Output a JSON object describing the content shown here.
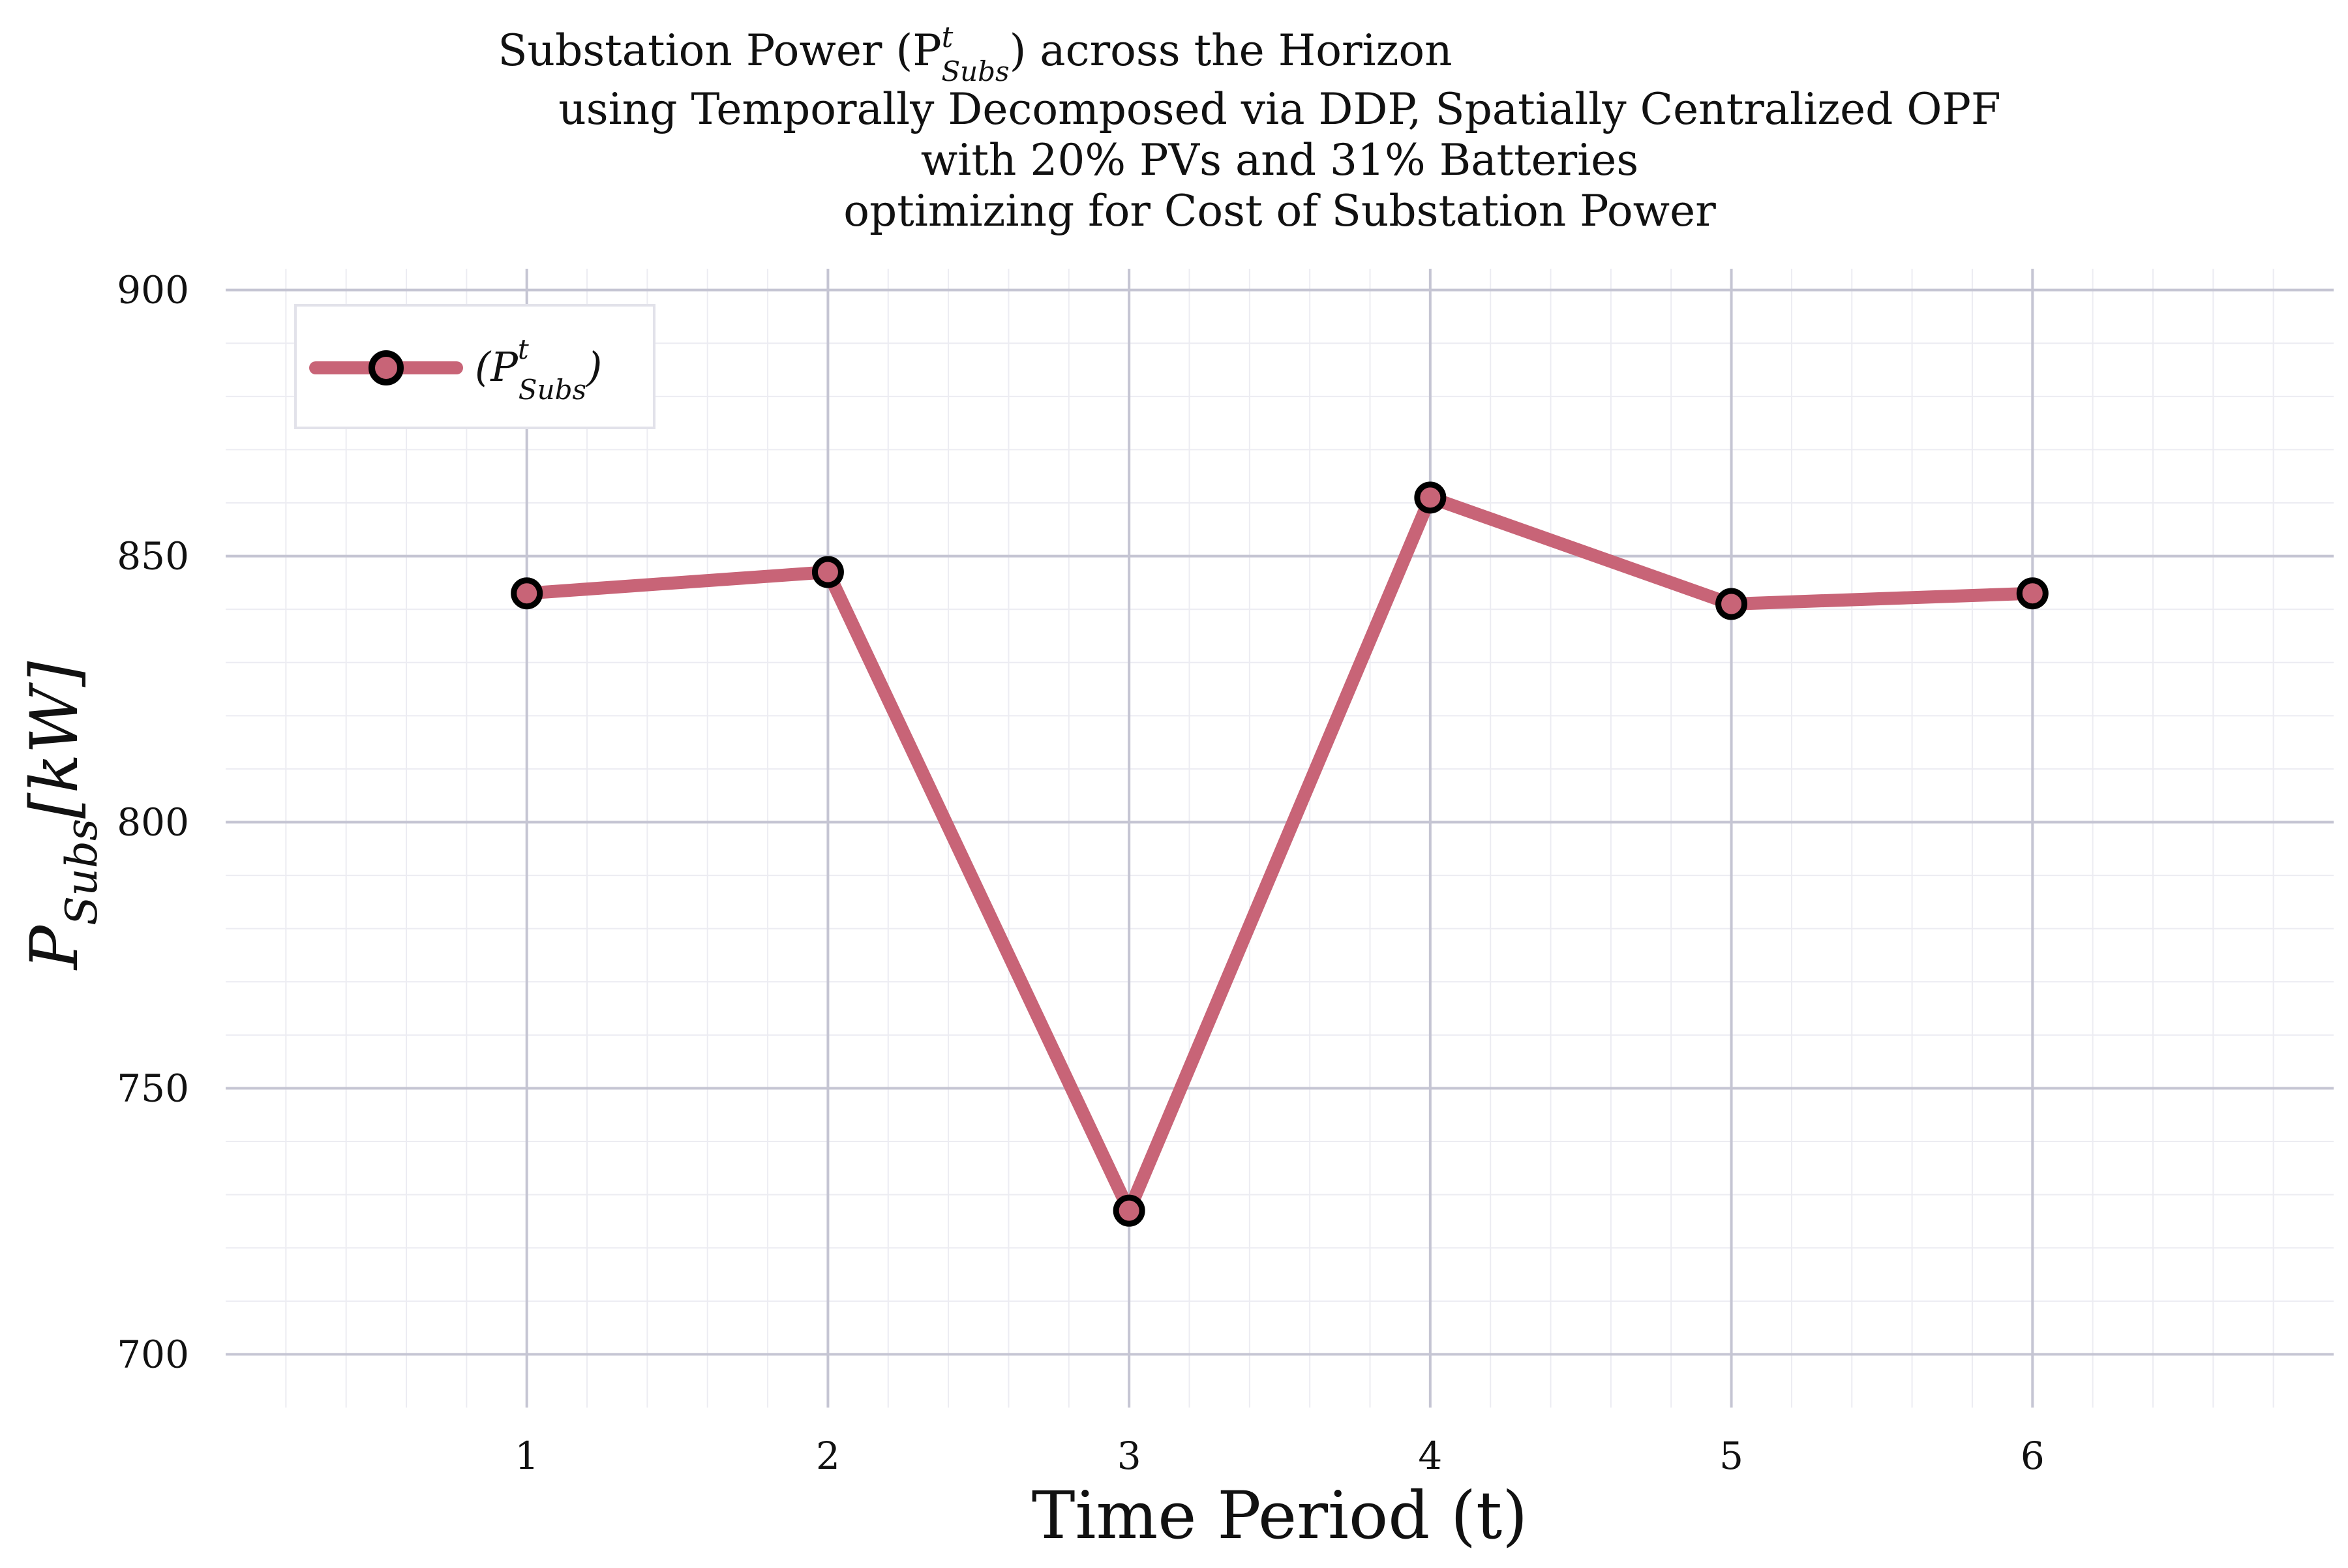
{
  "chart_data": {
    "type": "line",
    "title_lines": [
      "Substation Power (P",
      "using Temporally Decomposed via DDP, Spatially Centralized OPF",
      "with 20% PVs and 31% Batteries",
      "optimizing for Cost of Substation Power"
    ],
    "title_symbol": {
      "base": "P",
      "sup": "t",
      "sub": "Subs",
      "after": ") across the Horizon"
    },
    "xlabel": "Time Period (t)",
    "ylabel": {
      "base": "P",
      "sub": "Subs",
      "after": "[kW]"
    },
    "x": [
      1,
      2,
      3,
      4,
      5,
      6
    ],
    "x_ticks": [
      "1",
      "2",
      "3",
      "4",
      "5",
      "6"
    ],
    "y_ticks": [
      "700",
      "750",
      "800",
      "850",
      "900"
    ],
    "xlim": [
      0.0,
      7.0
    ],
    "ylim": [
      690,
      904
    ],
    "series": [
      {
        "name": "(P^t_Subs)",
        "values": [
          843,
          847,
          727,
          861,
          841,
          843
        ]
      }
    ],
    "legend": {
      "label_base": "(P",
      "label_sup": "t",
      "label_sub": "Subs",
      "label_after": ")",
      "placement": "top-left"
    },
    "grid": true,
    "colors": {
      "line": "#c86477",
      "marker_edge": "#000000",
      "grid_major": "#c5c5d3",
      "grid_minor": "#ececf2"
    }
  }
}
